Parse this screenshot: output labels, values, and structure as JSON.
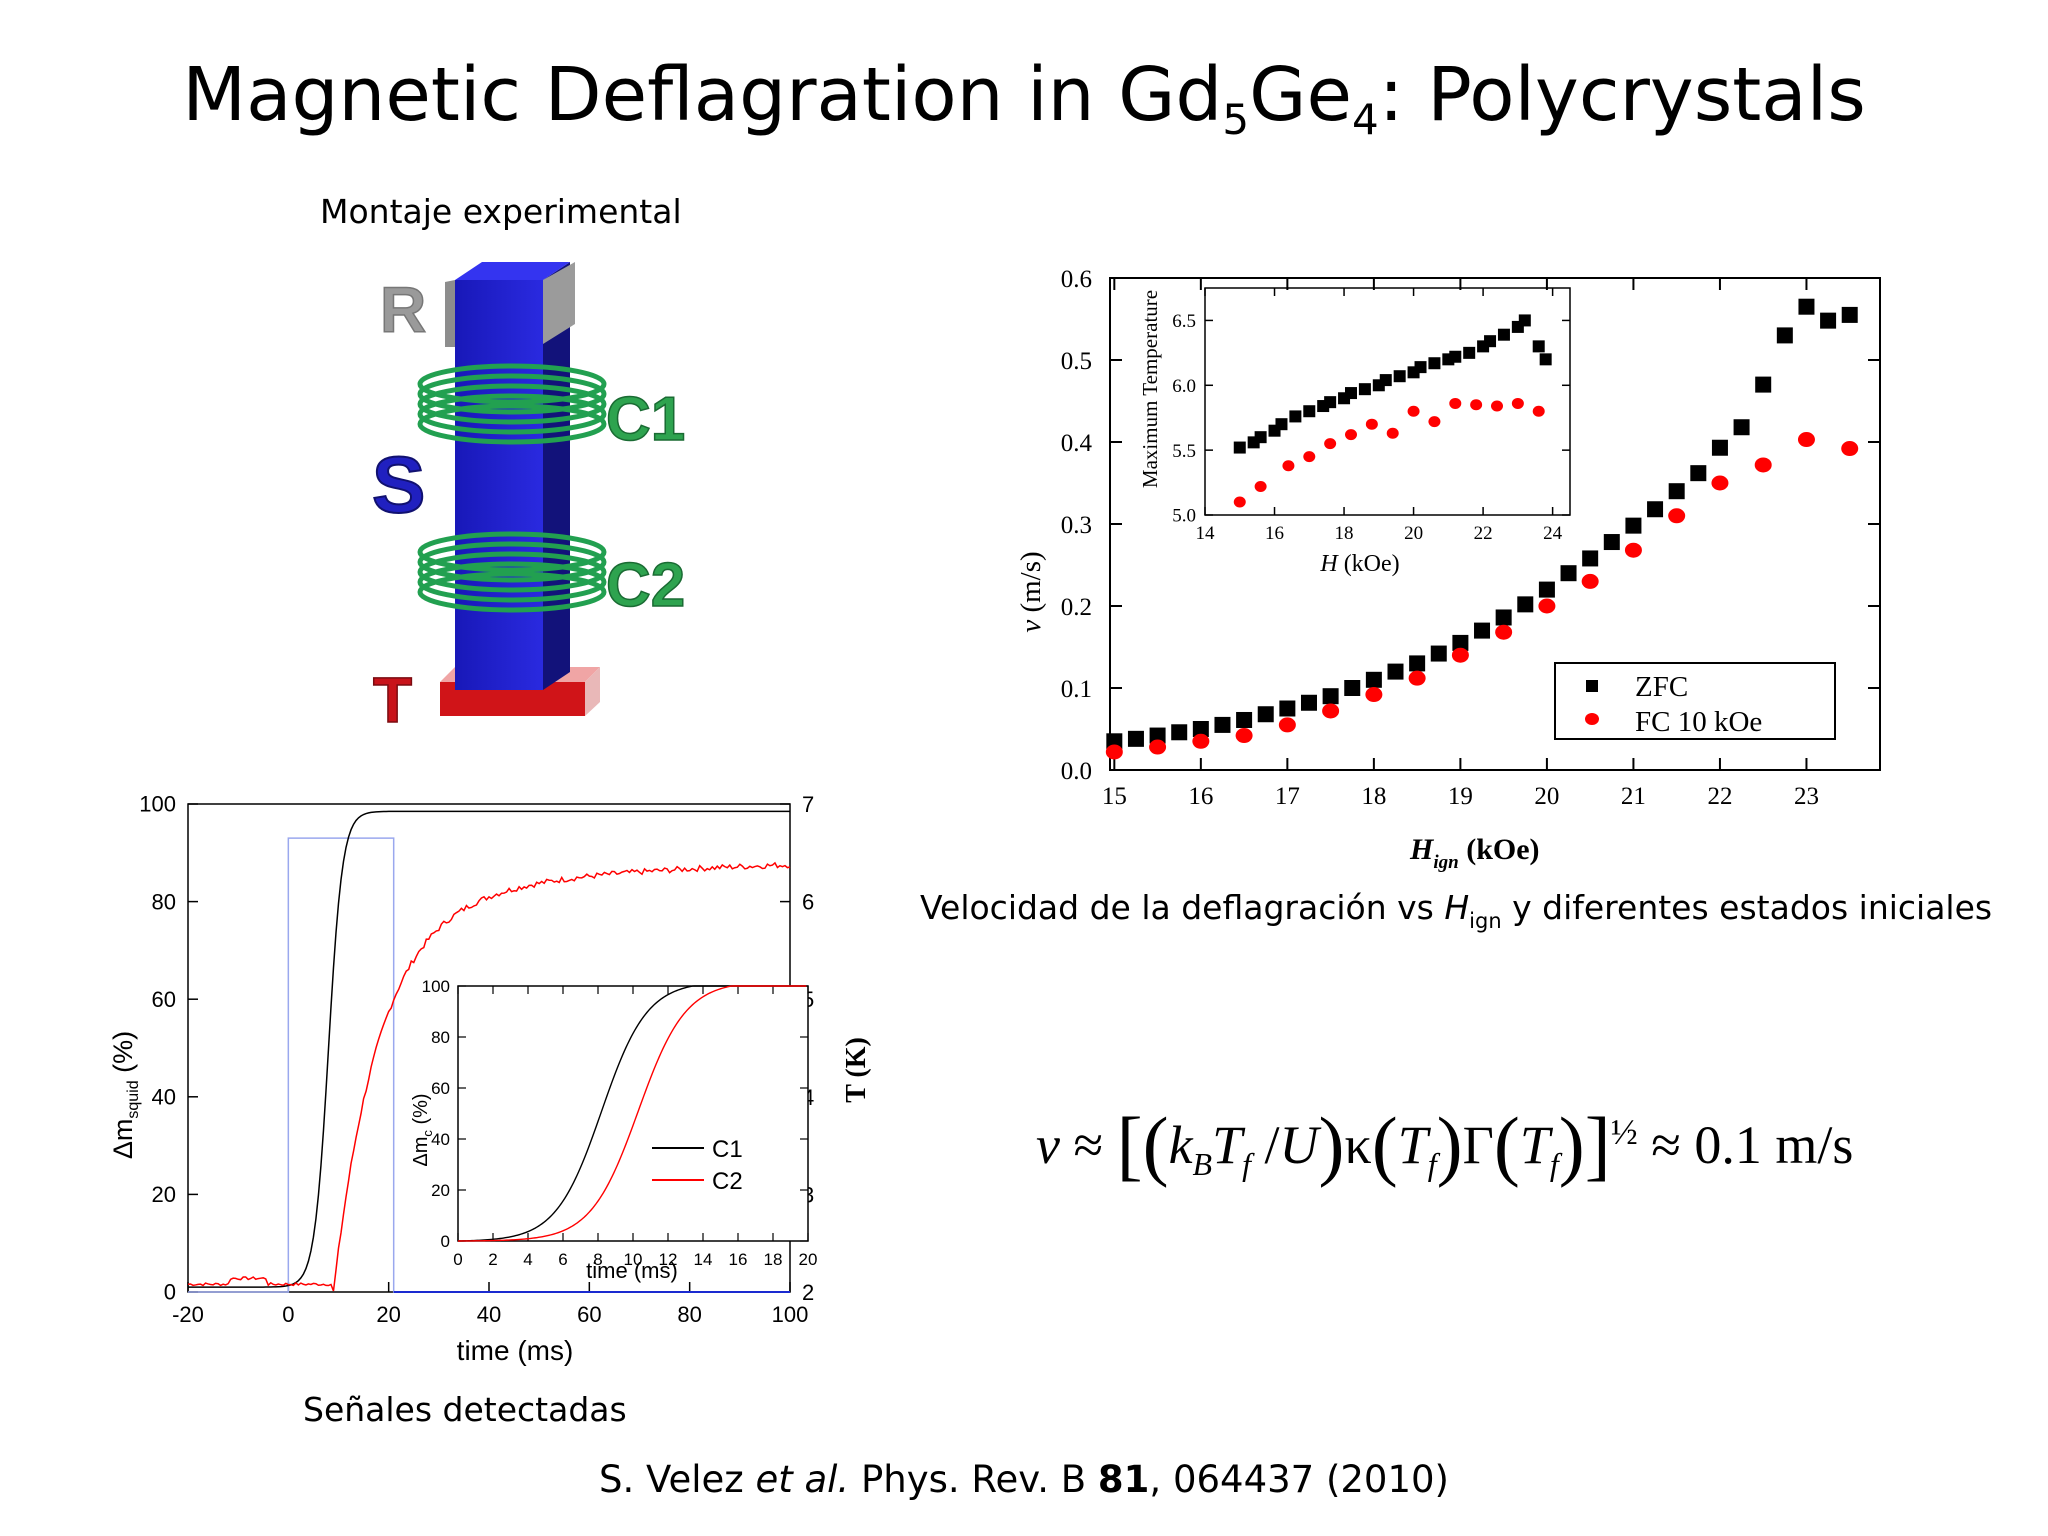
{
  "title": {
    "main": "Magnetic Deflagration in Gd",
    "sub1": "5",
    "mid": "Ge",
    "sub2": "4",
    "end": ": Polycrystals"
  },
  "captions": {
    "setup": "Montaje experimental",
    "signals": "Señales detectadas",
    "velocity_pre": "Velocidad de la deflagración vs ",
    "velocity_var": "H",
    "velocity_sub": "ign",
    "velocity_post": " y diferentes estados iniciales"
  },
  "citation": {
    "authors": "S. Velez ",
    "etal": "et al.",
    "journal": " Phys. Rev. B ",
    "volume": "81",
    "rest": ", 064437 (2010)"
  },
  "setup_labels": {
    "R": "R",
    "S": "S",
    "C1": "C1",
    "C2": "C2",
    "T": "T"
  },
  "formula": {
    "v": "v",
    "approx": "≈",
    "kB": "k",
    "kB_sub": "B",
    "Tf": "T",
    "f": "f",
    "U": "U",
    "kappa": "κ",
    "Gamma": "Γ",
    "half": "½",
    "result": "≈ 0.1 m/s"
  },
  "colors": {
    "zfc": "#000000",
    "fc": "#ff0000",
    "bar": "#1a1acc",
    "bar_edge": "#7a7a8a",
    "coil": "#2ea34f",
    "cap": "#c8131a",
    "pulse": "#9aa8ee"
  },
  "chart_data": [
    {
      "type": "scatter",
      "name": "velocity",
      "xlabel_var": "H",
      "xlabel_sub": "ign",
      "xlabel_unit": " (kOe)",
      "ylabel_var": "v",
      "ylabel_unit": " (m/s)",
      "xlim": [
        14.95,
        23.85
      ],
      "ylim": [
        0,
        0.6
      ],
      "xticks": [
        15,
        16,
        17,
        18,
        19,
        20,
        21,
        22,
        23
      ],
      "yticks": [
        0.0,
        0.1,
        0.2,
        0.3,
        0.4,
        0.5,
        0.6
      ],
      "legend": [
        "ZFC",
        "FC 10 kOe"
      ],
      "series": [
        {
          "name": "ZFC",
          "marker": "square",
          "x": [
            15,
            15.25,
            15.5,
            15.75,
            16,
            16.25,
            16.5,
            16.75,
            17,
            17.25,
            17.5,
            17.75,
            18,
            18.25,
            18.5,
            18.75,
            19,
            19.25,
            19.5,
            19.75,
            20,
            20.25,
            20.5,
            20.75,
            21,
            21.25,
            21.5,
            21.75,
            22,
            22.25,
            22.5,
            22.75,
            23,
            23.25,
            23.5
          ],
          "y": [
            0.035,
            0.038,
            0.042,
            0.046,
            0.05,
            0.055,
            0.061,
            0.068,
            0.075,
            0.082,
            0.09,
            0.1,
            0.11,
            0.12,
            0.13,
            0.142,
            0.155,
            0.17,
            0.186,
            0.202,
            0.22,
            0.24,
            0.258,
            0.278,
            0.298,
            0.318,
            0.34,
            0.362,
            0.393,
            0.418,
            0.47,
            0.53,
            0.565,
            0.548,
            0.555
          ]
        },
        {
          "name": "FC 10 kOe",
          "marker": "circle",
          "x": [
            15,
            15.5,
            16,
            16.5,
            17,
            17.5,
            18,
            18.5,
            19,
            19.5,
            20,
            20.5,
            21,
            21.5,
            22,
            22.5,
            23,
            23.5
          ],
          "y": [
            0.022,
            0.028,
            0.035,
            0.042,
            0.055,
            0.072,
            0.092,
            0.112,
            0.14,
            0.168,
            0.2,
            0.23,
            0.268,
            0.31,
            0.35,
            0.372,
            0.403,
            0.392
          ]
        }
      ],
      "inset": {
        "xlabel_var": "H",
        "xlabel_unit": " (kOe)",
        "ylabel": "Maximum Temperature",
        "xlim": [
          14,
          24.5
        ],
        "ylim": [
          5.0,
          6.75
        ],
        "xticks": [
          14,
          16,
          18,
          20,
          22,
          24
        ],
        "yticks": [
          5.0,
          5.5,
          6.0,
          6.5
        ],
        "series": [
          {
            "name": "ZFC",
            "marker": "square",
            "x": [
              15,
              15.4,
              15.6,
              16,
              16.2,
              16.6,
              17,
              17.4,
              17.6,
              18,
              18.2,
              18.6,
              19,
              19.2,
              19.6,
              20,
              20.2,
              20.6,
              21,
              21.2,
              21.6,
              22,
              22.2,
              22.6,
              23,
              23.2,
              23.6,
              23.8
            ],
            "y": [
              5.52,
              5.56,
              5.6,
              5.65,
              5.7,
              5.76,
              5.8,
              5.84,
              5.87,
              5.9,
              5.94,
              5.97,
              6.0,
              6.04,
              6.07,
              6.1,
              6.14,
              6.17,
              6.2,
              6.22,
              6.25,
              6.3,
              6.34,
              6.39,
              6.45,
              6.5,
              6.3,
              6.2
            ]
          },
          {
            "name": "FC 10 kOe",
            "marker": "circle",
            "x": [
              15,
              15.6,
              16.4,
              17,
              17.6,
              18.2,
              18.8,
              19.4,
              20,
              20.6,
              21.2,
              21.8,
              22.4,
              23,
              23.6
            ],
            "y": [
              5.1,
              5.22,
              5.38,
              5.45,
              5.55,
              5.62,
              5.7,
              5.63,
              5.8,
              5.72,
              5.86,
              5.85,
              5.84,
              5.86,
              5.8
            ]
          }
        ]
      }
    },
    {
      "type": "line",
      "name": "signals",
      "xlabel": "time (ms)",
      "ylabel_pre": "Δm",
      "ylabel_sub": "squid",
      "ylabel_unit": " (%)",
      "y2label": "T (K)",
      "xlim": [
        -20,
        100
      ],
      "ylim": [
        0,
        100
      ],
      "y2lim": [
        2,
        7
      ],
      "xticks": [
        -20,
        0,
        20,
        40,
        60,
        80,
        100
      ],
      "yticks": [
        0,
        20,
        40,
        60,
        80,
        100
      ],
      "y2ticks": [
        2,
        3,
        4,
        5,
        6,
        7
      ],
      "series": [
        {
          "name": "Δm squid",
          "color": "#000000"
        },
        {
          "name": "T",
          "color": "#ff0000"
        },
        {
          "name": "pulse",
          "color": "#9aa8ee"
        }
      ],
      "inset": {
        "xlabel": "time (ms)",
        "ylabel_pre": "Δm",
        "ylabel_sub": "c",
        "ylabel_unit": " (%)",
        "xlim": [
          0,
          20
        ],
        "ylim": [
          0,
          100
        ],
        "xticks": [
          0,
          2,
          4,
          6,
          8,
          10,
          12,
          14,
          16,
          18,
          20
        ],
        "yticks": [
          0,
          20,
          40,
          60,
          80,
          100
        ],
        "series": [
          {
            "name": "C1",
            "color": "#000000"
          },
          {
            "name": "C2",
            "color": "#ff0000"
          }
        ]
      }
    }
  ]
}
